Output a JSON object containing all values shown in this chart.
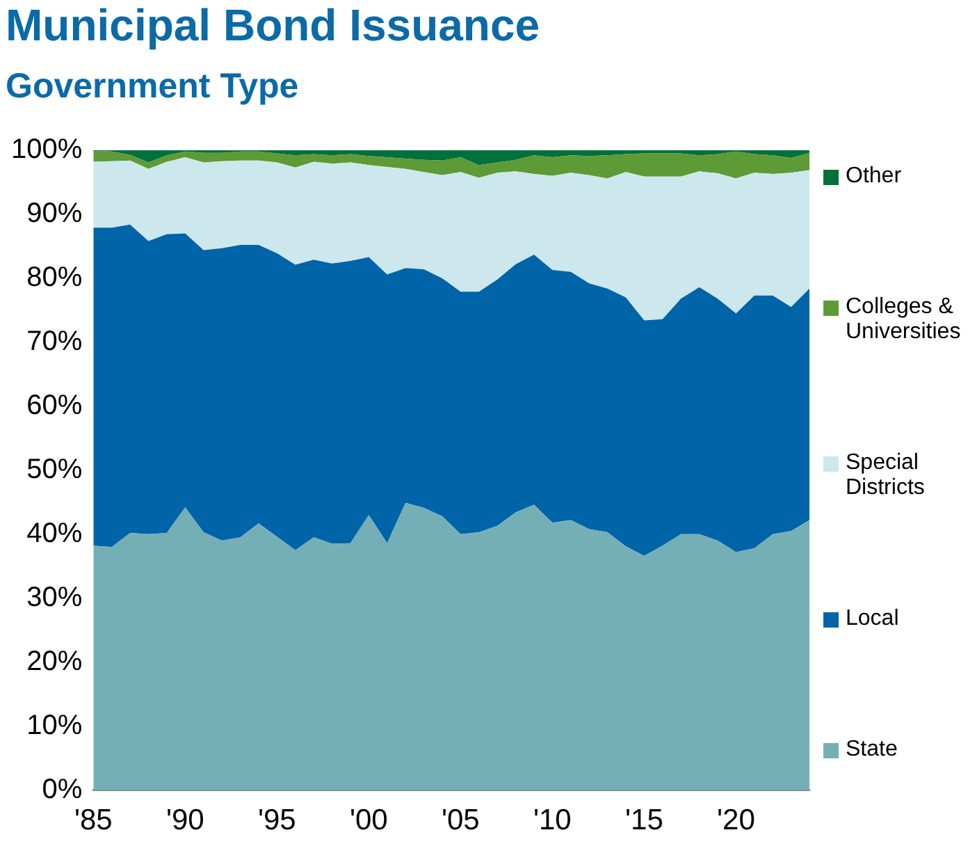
{
  "chart_data": {
    "type": "area",
    "stacked": true,
    "title": "Municipal Bond Issuance",
    "subtitle": "Government Type",
    "categories": [
      "'85",
      null,
      null,
      null,
      null,
      "'90",
      null,
      null,
      null,
      null,
      "'95",
      null,
      null,
      null,
      null,
      "'00",
      null,
      null,
      null,
      null,
      "'05",
      null,
      null,
      null,
      null,
      "'10",
      null,
      null,
      null,
      null,
      "'15",
      null,
      null,
      null,
      null,
      "'20",
      null,
      null,
      null,
      null
    ],
    "ylim": [
      0,
      100
    ],
    "yticks": [
      {
        "value": 0,
        "label": "0%"
      },
      {
        "value": 10,
        "label": "10%"
      },
      {
        "value": 20,
        "label": "20%"
      },
      {
        "value": 30,
        "label": "30%"
      },
      {
        "value": 40,
        "label": "40%"
      },
      {
        "value": 50,
        "label": "50%"
      },
      {
        "value": 60,
        "label": "60%"
      },
      {
        "value": 70,
        "label": "70%"
      },
      {
        "value": 80,
        "label": "80%"
      },
      {
        "value": 90,
        "label": "90%"
      },
      {
        "value": 100,
        "label": "100%"
      }
    ],
    "grid": false,
    "legend": "right",
    "series": [
      {
        "name": "State",
        "color": "#75afb6",
        "values": [
          38.2,
          38.0,
          40.2,
          40.0,
          40.2,
          44.2,
          40.3,
          39.0,
          39.5,
          41.7,
          39.6,
          37.5,
          39.5,
          38.5,
          38.6,
          43.0,
          38.6,
          44.9,
          44.1,
          42.8,
          40.0,
          40.3,
          41.3,
          43.4,
          44.6,
          41.8,
          42.2,
          40.8,
          40.3,
          38.1,
          36.6,
          38.2,
          40.0,
          40.0,
          39.0,
          37.2,
          37.8,
          40.0,
          40.5,
          42.2
        ]
      },
      {
        "name": "Local",
        "color": "#0064a8",
        "values": [
          49.7,
          49.9,
          48.2,
          45.8,
          46.7,
          42.8,
          44.1,
          45.7,
          45.7,
          43.5,
          44.3,
          44.6,
          43.4,
          43.8,
          44.1,
          40.3,
          42.0,
          36.7,
          37.3,
          37.2,
          37.9,
          37.6,
          38.5,
          38.8,
          39.1,
          39.5,
          38.8,
          38.4,
          38.1,
          38.9,
          36.8,
          35.4,
          36.8,
          38.6,
          37.8,
          37.3,
          39.5,
          37.3,
          35.0,
          36.2
        ]
      },
      {
        "name": "Special Districts",
        "color": "#cce8ec",
        "values": [
          10.3,
          10.4,
          10.0,
          11.3,
          11.3,
          11.9,
          13.7,
          13.6,
          13.2,
          13.2,
          14.2,
          15.2,
          15.3,
          15.6,
          15.4,
          14.4,
          16.8,
          15.5,
          15.2,
          16.1,
          18.7,
          17.8,
          16.7,
          14.5,
          12.6,
          14.7,
          15.5,
          16.9,
          17.2,
          19.6,
          22.5,
          22.3,
          19.1,
          18.1,
          19.6,
          21.1,
          19.2,
          19.0,
          21.0,
          18.5
        ]
      },
      {
        "name": "Colleges & Universities",
        "color": "#5e9a35",
        "values": [
          1.7,
          1.5,
          0.9,
          1.0,
          1.0,
          0.9,
          1.5,
          1.3,
          1.4,
          1.4,
          1.4,
          1.9,
          1.2,
          1.3,
          1.3,
          1.4,
          1.5,
          1.6,
          1.9,
          2.3,
          2.3,
          2.0,
          1.6,
          1.8,
          2.9,
          2.9,
          2.7,
          3.0,
          3.6,
          2.8,
          3.6,
          3.6,
          3.6,
          2.5,
          3.0,
          4.2,
          2.9,
          2.9,
          2.3,
          2.7
        ]
      },
      {
        "name": "Other",
        "color": "#00703c",
        "values": [
          0.1,
          0.2,
          0.7,
          1.9,
          0.8,
          0.2,
          0.4,
          0.4,
          0.2,
          0.2,
          0.5,
          0.8,
          0.6,
          0.8,
          0.6,
          0.9,
          1.1,
          1.3,
          1.5,
          1.6,
          1.1,
          2.3,
          1.9,
          1.5,
          0.8,
          1.1,
          0.8,
          0.9,
          0.8,
          0.6,
          0.5,
          0.5,
          0.5,
          0.8,
          0.6,
          0.2,
          0.6,
          0.8,
          1.2,
          0.4
        ]
      }
    ]
  }
}
